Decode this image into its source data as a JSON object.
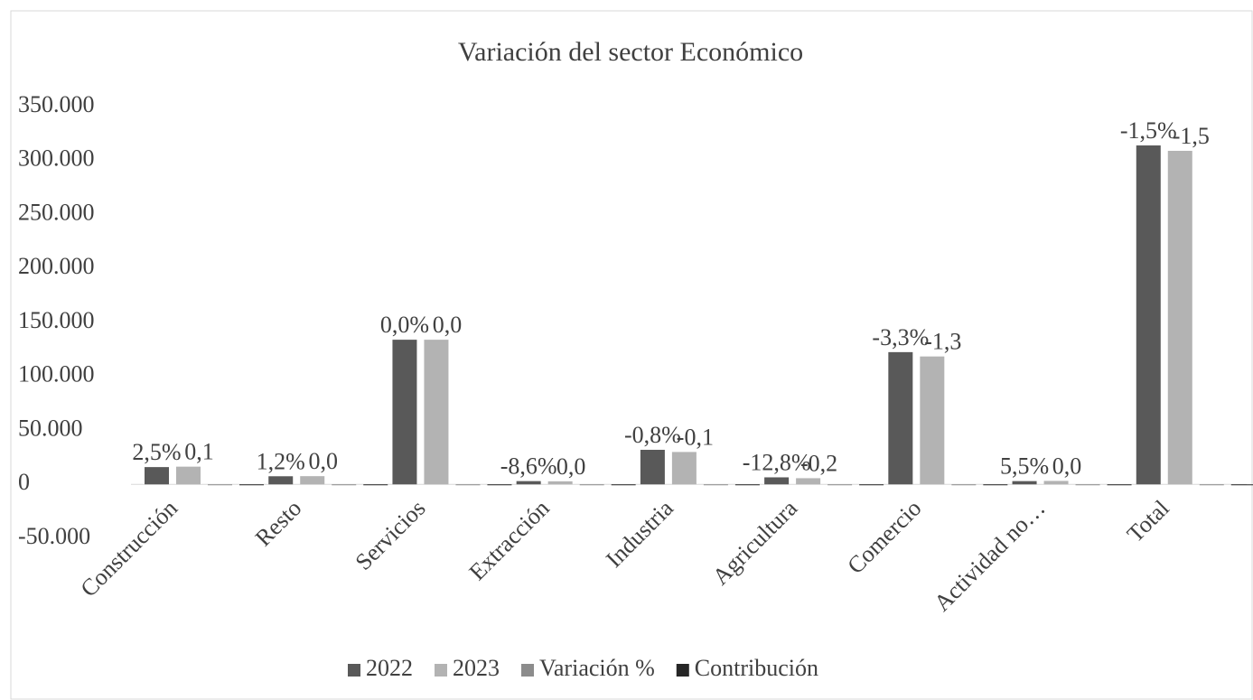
{
  "chart_data": {
    "type": "bar",
    "title": "Variación  del sector Económico",
    "categories": [
      "Construcción",
      "Resto",
      "Servicios",
      "Extracción",
      "Industria",
      "Agricultura",
      "Comercio",
      "Actividad no…",
      "Total"
    ],
    "series": [
      {
        "name": "2022",
        "color": "#595959",
        "values": [
          16000,
          7500,
          134000,
          3000,
          32000,
          6500,
          122500,
          3000,
          314000
        ]
      },
      {
        "name": "2023",
        "color": "#b3b3b3",
        "values": [
          16400,
          7600,
          134000,
          2800,
          30000,
          5700,
          118500,
          3200,
          309000
        ]
      },
      {
        "name": "Variación %",
        "color": "#8c8c8c",
        "values": [
          0.025,
          0.012,
          0.0,
          -0.086,
          -0.008,
          -0.128,
          -0.033,
          0.055,
          -0.015
        ],
        "value_labels": [
          "2,5%",
          "1,2%",
          "0,0%",
          "-8,6%",
          "-0,8%",
          "-12,8%",
          "-3,3%",
          "5,5%",
          "-1,5%"
        ]
      },
      {
        "name": "Contribución",
        "color": "#262626",
        "values": [
          0.1,
          0.0,
          0.0,
          0.0,
          -0.1,
          -0.2,
          -1.3,
          0.0,
          -1.5
        ],
        "value_labels": [
          "0,1",
          "0,0",
          "0,0",
          "0,0",
          "-0,1",
          "-0,2",
          "-1,3",
          "0,0",
          "-1,5"
        ]
      }
    ],
    "ylim": [
      -50000,
      350000
    ],
    "yticks": [
      {
        "value": -50000,
        "label": "-50.000"
      },
      0,
      {
        "value": 50000,
        "label": "50.000"
      },
      {
        "value": 100000,
        "label": "100.000"
      },
      {
        "value": 150000,
        "label": "150.000"
      },
      {
        "value": 200000,
        "label": "200.000"
      },
      {
        "value": 250000,
        "label": "250.000"
      },
      {
        "value": 300000,
        "label": "300.000"
      },
      {
        "value": 350000,
        "label": "350.000"
      }
    ],
    "grid": false,
    "legend": "bottom"
  }
}
